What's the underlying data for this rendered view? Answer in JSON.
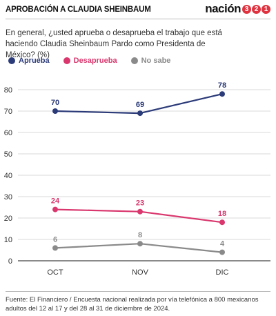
{
  "header": {
    "title": "APROBACIÓN A CLAUDIA SHEINBAUM",
    "brand_word": "nación",
    "brand_digits": [
      "3",
      "2",
      "1"
    ]
  },
  "question": "En general, ¿usted aprueba o desaprueba el trabajo que está haciendo Claudia Sheinbaum Pardo como Presidenta de México? (%)",
  "footer": "Fuente: El Financiero / Encuesta nacional realizada por vía telefónica a 800 mexicanos adultos del 12 al 17 y del 28 al 31 de diciembre de 2024.",
  "colors": {
    "aprueba": "#2b3a78",
    "desaprueba": "#d9376e",
    "nosabe": "#8a8a8a",
    "brand_red": "#e03340"
  },
  "chart_data": {
    "type": "line",
    "categories": [
      "OCT",
      "NOV",
      "DIC"
    ],
    "series": [
      {
        "name": "Aprueba",
        "values": [
          70,
          69,
          78
        ],
        "color": "#2b3a78"
      },
      {
        "name": "Desaprueba",
        "values": [
          24,
          23,
          18
        ],
        "color": "#d9376e"
      },
      {
        "name": "No sabe",
        "values": [
          6,
          8,
          4
        ],
        "color": "#8a8a8a"
      }
    ],
    "y_ticks": [
      "0",
      "10",
      "20",
      "30",
      "40",
      "50",
      "60",
      "70",
      "80"
    ],
    "ylim": [
      0,
      85
    ],
    "grid": true,
    "legend": "top-left"
  }
}
